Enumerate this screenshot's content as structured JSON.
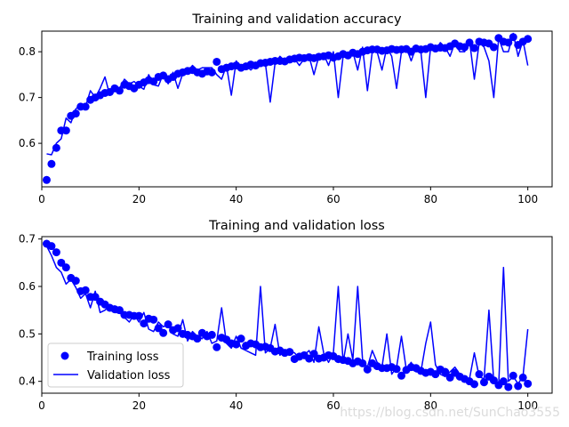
{
  "watermark": "https://blog.csdn.net/SunChao3555",
  "colors": {
    "series": "#0000ff",
    "axis": "#000000",
    "background": "#ffffff"
  },
  "chart_data": [
    {
      "type": "line",
      "title": "Training and validation accuracy",
      "xlabel": "",
      "ylabel": "",
      "xlim": [
        0,
        105
      ],
      "ylim": [
        0.505,
        0.845
      ],
      "xticks": [
        0,
        20,
        40,
        60,
        80,
        100
      ],
      "yticks": [
        0.6,
        0.7,
        0.8
      ],
      "grid": false,
      "legend": false,
      "series": [
        {
          "style": "markers",
          "x": [
            1,
            2,
            3,
            4,
            5,
            6,
            7,
            8,
            9,
            10,
            11,
            12,
            13,
            14,
            15,
            16,
            17,
            18,
            19,
            20,
            21,
            22,
            23,
            24,
            25,
            26,
            27,
            28,
            29,
            30,
            31,
            32,
            33,
            34,
            35,
            36,
            37,
            38,
            39,
            40,
            41,
            42,
            43,
            44,
            45,
            46,
            47,
            48,
            49,
            50,
            51,
            52,
            53,
            54,
            55,
            56,
            57,
            58,
            59,
            60,
            61,
            62,
            63,
            64,
            65,
            66,
            67,
            68,
            69,
            70,
            71,
            72,
            73,
            74,
            75,
            76,
            77,
            78,
            79,
            80,
            81,
            82,
            83,
            84,
            85,
            86,
            87,
            88,
            89,
            90,
            91,
            92,
            93,
            94,
            95,
            96,
            97,
            98,
            99,
            100
          ],
          "values": [
            0.52,
            0.555,
            0.59,
            0.628,
            0.628,
            0.66,
            0.665,
            0.68,
            0.68,
            0.695,
            0.7,
            0.705,
            0.71,
            0.712,
            0.72,
            0.715,
            0.728,
            0.725,
            0.72,
            0.728,
            0.733,
            0.738,
            0.735,
            0.745,
            0.748,
            0.74,
            0.745,
            0.752,
            0.755,
            0.758,
            0.76,
            0.755,
            0.752,
            0.757,
            0.755,
            0.778,
            0.762,
            0.765,
            0.768,
            0.77,
            0.765,
            0.768,
            0.772,
            0.77,
            0.775,
            0.776,
            0.778,
            0.78,
            0.78,
            0.779,
            0.783,
            0.785,
            0.787,
            0.786,
            0.788,
            0.786,
            0.789,
            0.79,
            0.792,
            0.787,
            0.79,
            0.795,
            0.792,
            0.798,
            0.795,
            0.8,
            0.803,
            0.805,
            0.805,
            0.802,
            0.803,
            0.806,
            0.804,
            0.805,
            0.806,
            0.8,
            0.807,
            0.805,
            0.806,
            0.81,
            0.807,
            0.809,
            0.808,
            0.812,
            0.818,
            0.812,
            0.81,
            0.82,
            0.808,
            0.822,
            0.82,
            0.818,
            0.81,
            0.83,
            0.822,
            0.82,
            0.832,
            0.815,
            0.822,
            0.828
          ]
        },
        {
          "style": "line",
          "x": [
            1,
            2,
            3,
            4,
            5,
            6,
            7,
            8,
            9,
            10,
            11,
            12,
            13,
            14,
            15,
            16,
            17,
            18,
            19,
            20,
            21,
            22,
            23,
            24,
            25,
            26,
            27,
            28,
            29,
            30,
            31,
            32,
            33,
            34,
            35,
            36,
            37,
            38,
            39,
            40,
            41,
            42,
            43,
            44,
            45,
            46,
            47,
            48,
            49,
            50,
            51,
            52,
            53,
            54,
            55,
            56,
            57,
            58,
            59,
            60,
            61,
            62,
            63,
            64,
            65,
            66,
            67,
            68,
            69,
            70,
            71,
            72,
            73,
            74,
            75,
            76,
            77,
            78,
            79,
            80,
            81,
            82,
            83,
            84,
            85,
            86,
            87,
            88,
            89,
            90,
            91,
            92,
            93,
            94,
            95,
            96,
            97,
            98,
            99,
            100
          ],
          "values": [
            0.577,
            0.575,
            0.6,
            0.61,
            0.655,
            0.645,
            0.675,
            0.685,
            0.68,
            0.715,
            0.7,
            0.72,
            0.745,
            0.705,
            0.72,
            0.72,
            0.74,
            0.73,
            0.735,
            0.725,
            0.718,
            0.75,
            0.728,
            0.725,
            0.752,
            0.73,
            0.755,
            0.72,
            0.752,
            0.755,
            0.77,
            0.76,
            0.765,
            0.765,
            0.765,
            0.75,
            0.74,
            0.77,
            0.705,
            0.78,
            0.765,
            0.77,
            0.76,
            0.77,
            0.77,
            0.775,
            0.69,
            0.775,
            0.79,
            0.78,
            0.79,
            0.785,
            0.77,
            0.785,
            0.79,
            0.75,
            0.79,
            0.795,
            0.77,
            0.8,
            0.7,
            0.79,
            0.785,
            0.8,
            0.76,
            0.81,
            0.715,
            0.8,
            0.8,
            0.76,
            0.81,
            0.79,
            0.72,
            0.8,
            0.81,
            0.78,
            0.81,
            0.8,
            0.7,
            0.81,
            0.8,
            0.82,
            0.81,
            0.79,
            0.82,
            0.8,
            0.8,
            0.825,
            0.74,
            0.82,
            0.81,
            0.78,
            0.7,
            0.83,
            0.8,
            0.8,
            0.84,
            0.79,
            0.825,
            0.77
          ]
        }
      ]
    },
    {
      "type": "line",
      "title": "Training and validation loss",
      "xlabel": "",
      "ylabel": "",
      "xlim": [
        0,
        105
      ],
      "ylim": [
        0.375,
        0.705
      ],
      "xticks": [
        0,
        20,
        40,
        60,
        80,
        100
      ],
      "yticks": [
        0.4,
        0.5,
        0.6,
        0.7
      ],
      "grid": false,
      "legend_position": "lower-left",
      "series": [
        {
          "name": "Training loss",
          "style": "markers",
          "x": [
            1,
            2,
            3,
            4,
            5,
            6,
            7,
            8,
            9,
            10,
            11,
            12,
            13,
            14,
            15,
            16,
            17,
            18,
            19,
            20,
            21,
            22,
            23,
            24,
            25,
            26,
            27,
            28,
            29,
            30,
            31,
            32,
            33,
            34,
            35,
            36,
            37,
            38,
            39,
            40,
            41,
            42,
            43,
            44,
            45,
            46,
            47,
            48,
            49,
            50,
            51,
            52,
            53,
            54,
            55,
            56,
            57,
            58,
            59,
            60,
            61,
            62,
            63,
            64,
            65,
            66,
            67,
            68,
            69,
            70,
            71,
            72,
            73,
            74,
            75,
            76,
            77,
            78,
            79,
            80,
            81,
            82,
            83,
            84,
            85,
            86,
            87,
            88,
            89,
            90,
            91,
            92,
            93,
            94,
            95,
            96,
            97,
            98,
            99,
            100
          ],
          "values": [
            0.69,
            0.685,
            0.672,
            0.65,
            0.64,
            0.618,
            0.612,
            0.59,
            0.592,
            0.578,
            0.578,
            0.568,
            0.562,
            0.555,
            0.552,
            0.55,
            0.54,
            0.54,
            0.538,
            0.538,
            0.522,
            0.532,
            0.53,
            0.512,
            0.502,
            0.52,
            0.508,
            0.512,
            0.5,
            0.498,
            0.495,
            0.49,
            0.502,
            0.495,
            0.498,
            0.472,
            0.492,
            0.488,
            0.48,
            0.478,
            0.49,
            0.475,
            0.48,
            0.478,
            0.472,
            0.473,
            0.47,
            0.463,
            0.465,
            0.46,
            0.462,
            0.447,
            0.452,
            0.455,
            0.448,
            0.458,
            0.448,
            0.45,
            0.455,
            0.453,
            0.447,
            0.445,
            0.443,
            0.438,
            0.442,
            0.438,
            0.425,
            0.438,
            0.432,
            0.428,
            0.428,
            0.43,
            0.426,
            0.412,
            0.424,
            0.43,
            0.428,
            0.422,
            0.418,
            0.42,
            0.415,
            0.425,
            0.42,
            0.408,
            0.418,
            0.41,
            0.405,
            0.4,
            0.394,
            0.415,
            0.398,
            0.41,
            0.402,
            0.392,
            0.4,
            0.388,
            0.412,
            0.39,
            0.408,
            0.395
          ]
        },
        {
          "name": "Validation loss",
          "style": "line",
          "x": [
            1,
            2,
            3,
            4,
            5,
            6,
            7,
            8,
            9,
            10,
            11,
            12,
            13,
            14,
            15,
            16,
            17,
            18,
            19,
            20,
            21,
            22,
            23,
            24,
            25,
            26,
            27,
            28,
            29,
            30,
            31,
            32,
            33,
            34,
            35,
            36,
            37,
            38,
            39,
            40,
            41,
            42,
            43,
            44,
            45,
            46,
            47,
            48,
            49,
            50,
            51,
            52,
            53,
            54,
            55,
            56,
            57,
            58,
            59,
            60,
            61,
            62,
            63,
            64,
            65,
            66,
            67,
            68,
            69,
            70,
            71,
            72,
            73,
            74,
            75,
            76,
            77,
            78,
            79,
            80,
            81,
            82,
            83,
            84,
            85,
            86,
            87,
            88,
            89,
            90,
            91,
            92,
            93,
            94,
            95,
            96,
            97,
            98,
            99,
            100
          ],
          "values": [
            0.685,
            0.665,
            0.64,
            0.63,
            0.605,
            0.615,
            0.598,
            0.575,
            0.585,
            0.555,
            0.59,
            0.545,
            0.55,
            0.56,
            0.545,
            0.545,
            0.535,
            0.525,
            0.54,
            0.525,
            0.545,
            0.51,
            0.505,
            0.525,
            0.515,
            0.52,
            0.5,
            0.495,
            0.53,
            0.485,
            0.505,
            0.495,
            0.49,
            0.505,
            0.48,
            0.485,
            0.555,
            0.48,
            0.47,
            0.495,
            0.47,
            0.465,
            0.46,
            0.455,
            0.6,
            0.46,
            0.47,
            0.52,
            0.455,
            0.465,
            0.465,
            0.46,
            0.448,
            0.455,
            0.465,
            0.44,
            0.515,
            0.46,
            0.44,
            0.46,
            0.6,
            0.44,
            0.5,
            0.445,
            0.6,
            0.445,
            0.43,
            0.465,
            0.44,
            0.43,
            0.5,
            0.415,
            0.43,
            0.495,
            0.425,
            0.44,
            0.42,
            0.42,
            0.48,
            0.525,
            0.435,
            0.415,
            0.41,
            0.42,
            0.43,
            0.415,
            0.41,
            0.405,
            0.46,
            0.41,
            0.405,
            0.55,
            0.4,
            0.39,
            0.64,
            0.4,
            0.41,
            0.395,
            0.41,
            0.51
          ]
        }
      ]
    }
  ]
}
